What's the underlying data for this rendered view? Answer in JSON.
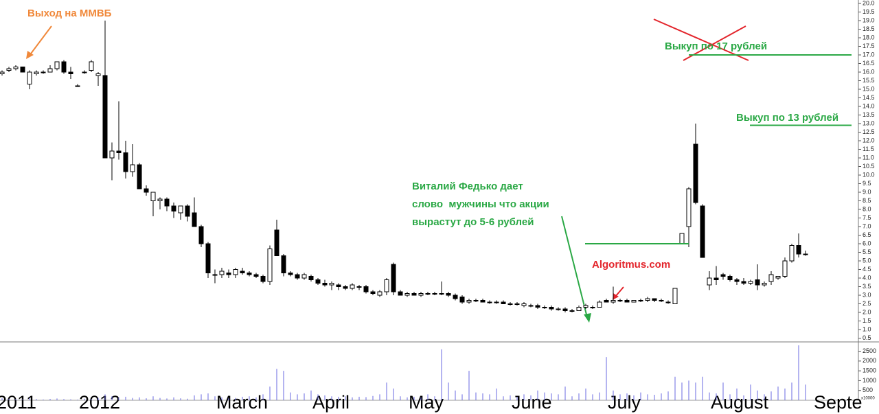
{
  "chart_data": [
    {
      "type": "candlestick",
      "categories": [
        "2011",
        null,
        null,
        null,
        null,
        null,
        null,
        null,
        null,
        null,
        null,
        null,
        "2012",
        null,
        null,
        null,
        null,
        null,
        null,
        null,
        null,
        null,
        null,
        null,
        null,
        null,
        null,
        null,
        null,
        null,
        null,
        null,
        "March",
        null,
        null,
        null,
        null,
        null,
        null,
        null,
        null,
        null,
        null,
        null,
        null,
        null,
        "April",
        null,
        null,
        null,
        null,
        null,
        null,
        null,
        null,
        null,
        null,
        null,
        null,
        null,
        "May",
        null,
        null,
        null,
        null,
        null,
        null,
        null,
        null,
        null,
        null,
        null,
        null,
        null,
        null,
        "June",
        null,
        null,
        null,
        null,
        null,
        null,
        null,
        null,
        null,
        null,
        null,
        null,
        null,
        "July",
        null,
        null,
        null,
        null,
        null,
        null,
        null,
        null,
        null,
        null,
        null,
        null,
        null,
        null,
        "August",
        null,
        null,
        null,
        null,
        null,
        null,
        null,
        null,
        null,
        null,
        null,
        null,
        null,
        null,
        "Septe"
      ],
      "open": [
        15.9,
        16.1,
        16.2,
        16.3,
        15.3,
        15.9,
        16.0,
        16.0,
        16.2,
        16.6,
        16.0,
        15.2,
        16.0,
        16.1,
        15.8,
        15.8,
        11.0,
        11.4,
        11.3,
        10.2,
        10.6,
        9.2,
        8.5,
        8.5,
        8.6,
        8.2,
        7.8,
        8.2,
        7.8,
        7.0,
        6.0,
        4.2,
        4.2,
        4.3,
        4.2,
        4.4,
        4.3,
        4.2,
        4.1,
        3.8,
        6.8,
        5.3,
        4.3,
        4.2,
        4.0,
        4.1,
        3.9,
        3.7,
        3.6,
        3.6,
        3.5,
        3.4,
        3.5,
        3.5,
        3.2,
        3.0,
        3.2,
        4.8,
        3.2,
        3.0,
        3.1,
        3.0,
        3.1,
        3.1,
        3.1,
        3.1,
        3.0,
        2.9,
        2.6,
        2.7,
        2.7,
        2.6,
        2.6,
        2.6,
        2.5,
        2.5,
        2.4,
        2.4,
        2.4,
        2.3,
        2.3,
        2.2,
        2.2,
        2.1,
        2.1,
        2.3,
        2.3,
        2.3,
        2.7,
        2.6,
        2.7,
        2.7,
        2.6,
        2.7,
        2.7,
        2.8,
        2.7,
        2.6,
        2.5,
        6.0,
        7.0,
        11.8,
        8.2,
        3.6,
        4.0,
        4.2,
        4.1,
        3.9,
        3.8,
        3.7,
        3.9,
        3.6,
        3.8,
        4.0,
        4.1,
        5.0,
        5.9,
        5.4,
        null,
        null
      ],
      "high": [
        16.1,
        16.3,
        16.4,
        16.3,
        16.1,
        16.1,
        16.1,
        16.4,
        16.6,
        16.7,
        16.3,
        15.3,
        16.1,
        16.7,
        16.0,
        19.0,
        11.9,
        14.3,
        12.0,
        11.8,
        10.7,
        9.4,
        9.0,
        8.7,
        8.7,
        8.4,
        8.2,
        8.3,
        8.7,
        7.1,
        6.1,
        4.5,
        4.6,
        4.5,
        4.6,
        4.6,
        4.4,
        4.3,
        4.2,
        5.9,
        7.4,
        5.4,
        4.4,
        4.3,
        4.3,
        4.2,
        4.0,
        3.9,
        3.8,
        3.7,
        3.6,
        3.7,
        3.6,
        3.6,
        3.3,
        3.3,
        4.0,
        4.9,
        3.3,
        3.2,
        3.2,
        3.2,
        3.2,
        3.2,
        3.8,
        3.2,
        3.1,
        3.0,
        2.8,
        2.8,
        2.8,
        2.7,
        2.7,
        2.7,
        2.6,
        2.6,
        2.6,
        2.5,
        2.5,
        2.4,
        2.4,
        2.3,
        2.3,
        2.2,
        2.4,
        2.5,
        2.4,
        2.7,
        2.8,
        3.5,
        2.8,
        2.8,
        2.7,
        2.8,
        2.9,
        2.8,
        2.8,
        2.7,
        3.4,
        6.6,
        9.3,
        13.0,
        8.3,
        4.4,
        4.7,
        4.3,
        4.2,
        4.0,
        4.0,
        3.9,
        4.8,
        3.8,
        4.4,
        4.1,
        5.2,
        6.0,
        6.6,
        5.6,
        null,
        null
      ],
      "low": [
        15.8,
        16.0,
        16.1,
        16.0,
        15.0,
        15.8,
        15.9,
        16.0,
        16.1,
        15.9,
        15.6,
        15.2,
        15.9,
        16.0,
        15.2,
        11.0,
        9.7,
        10.9,
        9.8,
        9.9,
        9.2,
        8.8,
        7.6,
        8.0,
        7.9,
        7.5,
        7.4,
        7.3,
        7.0,
        5.8,
        4.0,
        3.7,
        4.0,
        4.0,
        4.0,
        4.2,
        4.1,
        4.0,
        3.7,
        3.6,
        5.3,
        4.1,
        4.1,
        3.9,
        3.9,
        3.8,
        3.6,
        3.5,
        3.3,
        3.3,
        3.3,
        3.3,
        3.3,
        3.1,
        3.0,
        2.9,
        3.0,
        3.0,
        3.0,
        2.9,
        3.0,
        2.9,
        3.0,
        3.0,
        3.0,
        2.9,
        2.7,
        2.5,
        2.5,
        2.6,
        2.6,
        2.5,
        2.5,
        2.5,
        2.4,
        2.4,
        2.3,
        2.3,
        2.2,
        2.2,
        2.1,
        2.1,
        2.0,
        2.0,
        2.1,
        2.2,
        2.2,
        2.3,
        2.6,
        2.5,
        2.6,
        2.6,
        2.6,
        2.6,
        2.6,
        2.6,
        2.6,
        2.5,
        2.5,
        6.0,
        5.8,
        8.3,
        5.2,
        3.3,
        3.6,
        3.9,
        3.8,
        3.6,
        3.6,
        3.6,
        3.3,
        3.5,
        3.6,
        3.9,
        4.0,
        4.9,
        5.2,
        5.3,
        null,
        null
      ],
      "close": [
        16.0,
        16.2,
        16.3,
        16.0,
        16.0,
        16.0,
        16.0,
        16.2,
        16.6,
        16.0,
        15.9,
        15.2,
        16.0,
        16.6,
        15.9,
        11.0,
        11.4,
        11.3,
        10.2,
        10.6,
        9.2,
        9.0,
        9.0,
        8.6,
        8.2,
        7.9,
        8.2,
        7.6,
        7.0,
        6.0,
        4.3,
        4.2,
        4.4,
        4.2,
        4.5,
        4.3,
        4.2,
        4.1,
        3.8,
        5.7,
        5.3,
        4.3,
        4.2,
        4.0,
        4.2,
        3.9,
        3.7,
        3.6,
        3.7,
        3.5,
        3.4,
        3.6,
        3.5,
        3.2,
        3.1,
        3.2,
        3.9,
        3.2,
        3.0,
        3.1,
        3.0,
        3.1,
        3.1,
        3.1,
        3.1,
        3.0,
        2.8,
        2.6,
        2.7,
        2.7,
        2.6,
        2.6,
        2.6,
        2.5,
        2.5,
        2.5,
        2.5,
        2.4,
        2.3,
        2.3,
        2.2,
        2.2,
        2.1,
        2.1,
        2.3,
        2.4,
        2.3,
        2.6,
        2.6,
        2.7,
        2.7,
        2.6,
        2.7,
        2.7,
        2.8,
        2.7,
        2.7,
        2.6,
        3.4,
        6.6,
        9.2,
        8.4,
        5.2,
        4.0,
        3.9,
        4.1,
        3.9,
        3.8,
        3.7,
        3.8,
        3.6,
        3.7,
        4.2,
        4.1,
        5.0,
        5.9,
        5.4,
        5.4,
        null,
        null
      ],
      "up_color": "#ffffff",
      "down_color": "#000000",
      "ylim": [
        0.2,
        20.2
      ],
      "yticks": [
        0.5,
        {
          "value": 1,
          "label": "1.0"
        },
        1.5,
        {
          "value": 2,
          "label": "2.0"
        },
        2.5,
        {
          "value": 3,
          "label": "3.0"
        },
        3.5,
        {
          "value": 4,
          "label": "4.0"
        },
        4.5,
        {
          "value": 5,
          "label": "5.0"
        },
        5.5,
        {
          "value": 6,
          "label": "6.0"
        },
        6.5,
        {
          "value": 7,
          "label": "7.0"
        },
        7.5,
        {
          "value": 8,
          "label": "8.0"
        },
        8.5,
        {
          "value": 9,
          "label": "9.0"
        },
        9.5,
        {
          "value": 10,
          "label": "10.0"
        },
        10.5,
        {
          "value": 11,
          "label": "11.0"
        },
        11.5,
        {
          "value": 12,
          "label": "12.0"
        },
        12.5,
        {
          "value": 13,
          "label": "13.0"
        },
        13.5,
        {
          "value": 14,
          "label": "14.0"
        },
        14.5,
        {
          "value": 15,
          "label": "15.0"
        },
        15.5,
        {
          "value": 16,
          "label": "16.0"
        },
        16.5,
        {
          "value": 17,
          "label": "17.0"
        },
        17.5,
        {
          "value": 18,
          "label": "18.0"
        },
        18.5,
        {
          "value": 19,
          "label": "19.0"
        },
        19.5,
        {
          "value": 20,
          "label": "20.0"
        }
      ],
      "annotations": [
        {
          "text": "Выход на ММВБ",
          "color": "#f0883a"
        },
        {
          "lines": [
            "Виталий Федько дает",
            "слово  мужчины что акции",
            "вырастут до 5-6 рублей"
          ],
          "color": "#2aa845"
        },
        {
          "text": "Algoritmus.com",
          "color": "#e3242b"
        },
        {
          "text": "Выкуп по 17 рублей",
          "color": "#2aa845"
        },
        {
          "text": "Выкуп по 13 рублей",
          "color": "#2aa845"
        }
      ],
      "levels": [
        {
          "value": 17,
          "color": "#2aa845"
        },
        {
          "value": 12.9,
          "color": "#2aa845"
        },
        {
          "value": 6,
          "color": "#2aa845"
        }
      ]
    },
    {
      "type": "bar",
      "values": [
        100,
        80,
        60,
        50,
        120,
        60,
        40,
        70,
        90,
        60,
        50,
        30,
        80,
        60,
        120,
        300,
        200,
        150,
        180,
        120,
        150,
        100,
        200,
        120,
        90,
        150,
        100,
        80,
        250,
        300,
        350,
        200,
        150,
        100,
        120,
        180,
        200,
        150,
        300,
        700,
        1600,
        1500,
        400,
        300,
        350,
        500,
        300,
        250,
        200,
        180,
        200,
        150,
        180,
        160,
        220,
        300,
        900,
        600,
        200,
        150,
        180,
        150,
        300,
        200,
        2600,
        900,
        500,
        300,
        1500,
        400,
        350,
        300,
        600,
        200,
        250,
        180,
        300,
        250,
        500,
        400,
        350,
        300,
        700,
        200,
        350,
        600,
        300,
        400,
        2200,
        500,
        300,
        350,
        250,
        400,
        300,
        280,
        350,
        450,
        1200,
        900,
        1000,
        900,
        1200,
        400,
        350,
        900,
        300,
        600,
        250,
        800,
        500,
        300,
        450,
        700,
        600,
        900,
        2800,
        800,
        null,
        null
      ],
      "color": "#6a6ae0",
      "ylim": [
        0,
        2800
      ],
      "yticks": [
        500,
        1000,
        1500,
        2000,
        2500
      ],
      "unit_label": "x10000"
    }
  ]
}
